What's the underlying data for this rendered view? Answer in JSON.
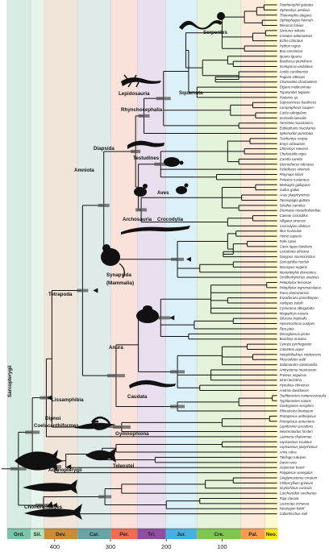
{
  "periods": [
    {
      "label": "Ord.",
      "start": 485,
      "end": 443,
      "color": "#7bc4a8",
      "band": "#d7ece3"
    },
    {
      "label": "Sil.",
      "start": 443,
      "end": 419,
      "color": "#b3e1c2",
      "band": "#e7f4eb"
    },
    {
      "label": "Dev.",
      "start": 419,
      "end": 359,
      "color": "#cb8c37",
      "band": "#f0e5d8"
    },
    {
      "label": "Car.",
      "start": 359,
      "end": 299,
      "color": "#6aa3a6",
      "band": "#dfeaeb"
    },
    {
      "label": "Per.",
      "start": 299,
      "end": 252,
      "color": "#ef6c50",
      "band": "#fae1da"
    },
    {
      "label": "Tri.",
      "start": 252,
      "end": 201,
      "color": "#8f4f9e",
      "band": "#eadfee"
    },
    {
      "label": "Jur.",
      "start": 201,
      "end": 145,
      "color": "#48b0e0",
      "band": "#dcf0fa"
    },
    {
      "label": "Cre.",
      "start": 145,
      "end": 66,
      "color": "#7fc64e",
      "band": "#e4f3d9"
    },
    {
      "label": "Pal.",
      "start": 66,
      "end": 23,
      "color": "#fd9a52",
      "band": "#feeadb"
    },
    {
      "label": "Neo.",
      "start": 23,
      "end": 0,
      "color": "#ffe619",
      "band": "#fff9d0"
    }
  ],
  "axis_ticks": [
    {
      "value": 400,
      "label": "400"
    },
    {
      "value": 300,
      "label": "300"
    },
    {
      "value": 200,
      "label": "200"
    },
    {
      "value": 100,
      "label": "100"
    }
  ],
  "taxa": [
    "Pantherophis guttatus",
    "Opheodrys aestivus",
    "Thamnophis elegans",
    "Ophiophagus hannah",
    "Micrurus fulvius",
    "Sistrurus miliaris",
    "Crotalus adamanteus",
    "Echis coloratus",
    "Python regius",
    "Boa constrictor",
    "Iguana iguana",
    "Basiliscus plumifrons",
    "Sceloporus undulatus",
    "Anolis carolinensis",
    "Pogona vitticeps",
    "Chamaeleo chamaeleon",
    "Elgaria multicarinata",
    "Tupinambis teguixin",
    "Podarcis sp.",
    "Saproscincus basiliscus",
    "Lamprophosis couperi",
    "Carlia rubrigularis",
    "Scincella lateralis",
    "Tarentola mauritanica",
    "Eublepharis macularius",
    "Sphenodon punctatus",
    "Trachemys scripta",
    "Emys orbicularis",
    "Chinemys reevesii",
    "Chelonoidis nigra",
    "Caretta caretta",
    "Sternotherus odoratus",
    "Pelodiscus sinensis",
    "Phrynops hilarii",
    "Pelusios castaneus",
    "Meleagris gallopavo",
    "Gallus gallus",
    "Anas platyrhynchos",
    "Taeniopygia guttata",
    "Struthio camelus",
    "Dromaius novaehollandiae",
    "Caiman crocodilus",
    "Alligator sinensis",
    "Crocodylus niloticus",
    "Mus musculus",
    "Homo sapiens",
    "Felis catus",
    "Canis lupus familiaris",
    "Loxodonta africana",
    "Dasypus novemcinctus",
    "Sarcophilus harrisii",
    "Macropus eugenii",
    "Monodelphis domestica",
    "Ornithorhynchus anatinus",
    "Pelophylax lessonae",
    "Pelophylax nigromaculatus",
    "Rana chensinensis",
    "Espadarana prosoblepon",
    "Atelopus zeteki",
    "Cycloramа albogutatta",
    "Megophrys nasuta",
    "Silurana tropicalis",
    "Hymenochirus curtipes",
    "Pipa pipa",
    "Discoglossus pictus",
    "Bombina maxima",
    "Cynops pyrrhogaster",
    "Calotriton asper",
    "Notophthalmus viridescens",
    "Pleurodeles waltl",
    "Salamandra salamandra",
    "Ambystoma mexicanum",
    "Proteus anguinus",
    "Siren lacertina",
    "Hynobius chinensis",
    "Andrias davidianus",
    "Typhlonectes compressicauda",
    "Typhlonectes natans",
    "Geotrypetes seraphini",
    "Rhinatrema bivittatum",
    "Protopterus aethiopicus",
    "Protopterus annectens",
    "Lepidosiren paradoxa",
    "Neoceratodus forsteri",
    "Latimeria chalumnae",
    "Lepisosteus oculatus",
    "Lepisosteus platyrhincus",
    "Amia calva",
    "Takifugu rubripes",
    "Danio rerio",
    "Acipenser baerii",
    "Polypterus senegalus",
    "Ginglymostoma cirratum",
    "Chiloscyllium griseum",
    "Scyliorhinus canicula",
    "Carcharodon carcharias",
    "Raja clavata",
    "Leucoraja erinacea",
    "Neotrygon kuhlii",
    "Callorhinchus milii"
  ],
  "clades": [
    {
      "label": "Serpentes"
    },
    {
      "label": "Squamata"
    },
    {
      "label": "Lepidosauria"
    },
    {
      "label": "Rhynchocephalia"
    },
    {
      "label": "Diapsida"
    },
    {
      "label": "Testudines"
    },
    {
      "label": "Aves"
    },
    {
      "label": "Amniota"
    },
    {
      "label": "Archosauria"
    },
    {
      "label": "Crocodylia"
    },
    {
      "label": "Synapsida"
    },
    {
      "label": "(Mammalia)"
    },
    {
      "label": "Tetrapoda"
    },
    {
      "label": "Anura"
    },
    {
      "label": "Lissamphibia"
    },
    {
      "label": "Caudata"
    },
    {
      "label": "Gymnophiona"
    },
    {
      "label": "Sarcopterygii"
    },
    {
      "label": "Dipnoi"
    },
    {
      "label": "Coelacanthiformes"
    },
    {
      "label": "Teleostei"
    },
    {
      "label": "Actinopterygii"
    },
    {
      "label": "Chondrichthyes"
    }
  ],
  "silhouettes": [
    {
      "icon": "snake-silhouette"
    },
    {
      "icon": "lizard-silhouette"
    },
    {
      "icon": "tuatara-silhouette"
    },
    {
      "icon": "turtle-silhouette"
    },
    {
      "icon": "bird-silhouette"
    },
    {
      "icon": "crocodile-silhouette"
    },
    {
      "icon": "mouse-silhouette"
    },
    {
      "icon": "frog-silhouette"
    },
    {
      "icon": "salamander-silhouette"
    },
    {
      "icon": "caecilian-silhouette"
    },
    {
      "icon": "lungfish-silhouette"
    },
    {
      "icon": "coelacanth-silhouette"
    },
    {
      "icon": "fish-silhouette"
    },
    {
      "icon": "sturgeon-silhouette"
    },
    {
      "icon": "shark-silhouette"
    }
  ]
}
